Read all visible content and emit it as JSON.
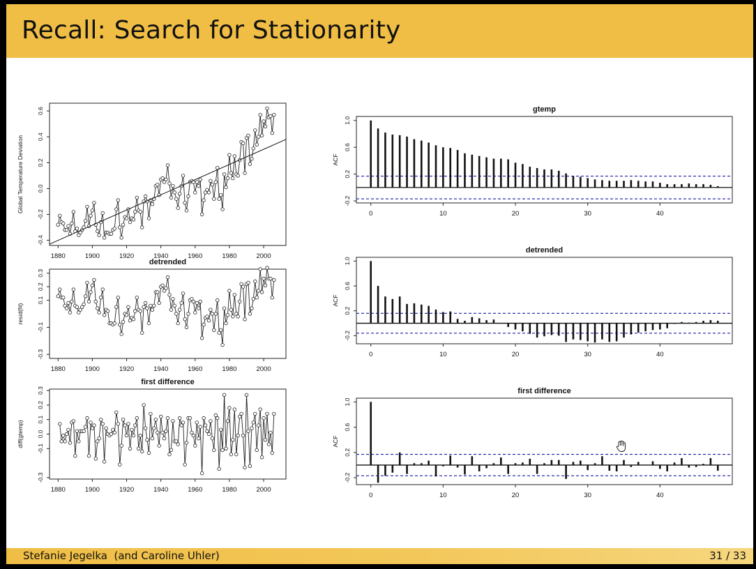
{
  "slide": {
    "title": "Recall: Search for Stationarity",
    "author": "Stefanie Jegelka  (and Caroline Uhler)",
    "page_number": "31",
    "page_separator": "/",
    "page_total": "33"
  },
  "chart_data": [
    {
      "type": "line",
      "title": "",
      "xlabel": "",
      "ylabel": "Global Temperature Deviation",
      "xlim": [
        1875,
        2013
      ],
      "ylim": [
        -0.44,
        0.66
      ],
      "xticks": [
        "1880",
        "1900",
        "1920",
        "1940",
        "1960",
        "1980",
        "2000"
      ],
      "yticks": [
        "-0.4",
        "-0.2",
        "0.0",
        "0.2",
        "0.4",
        "0.6"
      ],
      "markers": "open-circles",
      "trend_line": {
        "x": [
          1875,
          2013
        ],
        "y": [
          -0.43,
          0.38
        ]
      },
      "series": [
        {
          "x_start": 1880,
          "values": [
            -0.28,
            -0.21,
            -0.26,
            -0.27,
            -0.32,
            -0.32,
            -0.29,
            -0.35,
            -0.27,
            -0.18,
            -0.33,
            -0.31,
            -0.36,
            -0.34,
            -0.32,
            -0.3,
            -0.25,
            -0.14,
            -0.29,
            -0.21,
            -0.17,
            -0.11,
            -0.28,
            -0.33,
            -0.36,
            -0.26,
            -0.19,
            -0.38,
            -0.34,
            -0.34,
            -0.35,
            -0.35,
            -0.32,
            -0.31,
            -0.16,
            -0.09,
            -0.3,
            -0.38,
            -0.28,
            -0.22,
            -0.23,
            -0.16,
            -0.26,
            -0.23,
            -0.24,
            -0.18,
            -0.07,
            -0.17,
            -0.18,
            -0.3,
            -0.1,
            -0.06,
            -0.1,
            -0.23,
            -0.09,
            -0.12,
            -0.08,
            0.02,
            0.03,
            -0.05,
            0.07,
            0.08,
            0.05,
            0.07,
            0.18,
            0.04,
            -0.07,
            0.02,
            -0.03,
            -0.08,
            -0.15,
            -0.04,
            0.02,
            0.1,
            -0.11,
            -0.17,
            -0.06,
            0.05,
            0.06,
            0.05,
            -0.03,
            0.05,
            0.02,
            0.07,
            -0.2,
            -0.09,
            -0.03,
            -0.01,
            -0.03,
            0.06,
            0.03,
            -0.08,
            0.05,
            0.16,
            -0.08,
            -0.05,
            -0.16,
            0.11,
            0.01,
            0.08,
            0.26,
            0.12,
            0.08,
            0.25,
            0.11,
            0.1,
            0.22,
            0.36,
            0.35,
            0.12,
            0.39,
            0.41,
            0.19,
            0.23,
            0.31,
            0.45,
            0.34,
            0.4,
            0.57,
            0.41,
            0.52,
            0.48,
            0.62,
            0.55,
            0.56,
            0.43,
            0.57
          ]
        }
      ]
    },
    {
      "type": "line",
      "title": "detrended",
      "xlabel": "",
      "ylabel": "resid(fit)",
      "xlim": [
        1875,
        2013
      ],
      "ylim": [
        -0.33,
        0.33
      ],
      "xticks": [
        "1880",
        "1900",
        "1920",
        "1940",
        "1960",
        "1980",
        "2000"
      ],
      "yticks": [
        "-0.3",
        "-0.1",
        "0.1",
        "0.2",
        "0.3"
      ],
      "markers": "open-circles",
      "series": [
        {
          "x_start": 1880,
          "values": [
            0.13,
            0.18,
            0.12,
            0.12,
            0.06,
            0.04,
            0.08,
            0.01,
            0.09,
            0.18,
            0.06,
            0.05,
            0.01,
            0.03,
            0.05,
            0.07,
            0.13,
            0.23,
            0.09,
            0.16,
            0.21,
            0.25,
            0.09,
            0.04,
            0.01,
            0.12,
            0.18,
            -0.01,
            0.03,
            0.02,
            -0.07,
            -0.07,
            -0.08,
            -0.07,
            0.05,
            0.12,
            -0.08,
            -0.15,
            -0.06,
            0.0,
            -0.01,
            0.05,
            -0.05,
            -0.03,
            -0.04,
            0.02,
            0.12,
            0.03,
            0.02,
            -0.14,
            0.05,
            0.08,
            0.04,
            -0.07,
            0.06,
            0.03,
            0.06,
            0.16,
            0.16,
            0.08,
            0.2,
            0.21,
            0.17,
            0.19,
            0.27,
            0.14,
            0.03,
            0.11,
            0.06,
            0.0,
            -0.07,
            0.03,
            0.08,
            0.15,
            -0.04,
            -0.1,
            0.0,
            0.1,
            0.11,
            0.09,
            0.01,
            0.08,
            0.04,
            0.09,
            -0.18,
            -0.08,
            -0.03,
            -0.02,
            -0.05,
            0.03,
            0.0,
            -0.12,
            0.0,
            0.1,
            -0.14,
            -0.12,
            -0.23,
            0.04,
            -0.07,
            -0.01,
            0.17,
            0.03,
            -0.02,
            0.14,
            0.0,
            -0.02,
            0.09,
            0.22,
            0.2,
            -0.04,
            0.22,
            0.23,
            0.0,
            0.04,
            0.11,
            0.24,
            0.12,
            0.17,
            0.33,
            0.16,
            0.26,
            0.21,
            0.34,
            0.26,
            0.26,
            0.12,
            0.25
          ]
        }
      ]
    },
    {
      "type": "line",
      "title": "first difference",
      "xlabel": "",
      "ylabel": "diff(gtemp)",
      "xlim": [
        1875,
        2013
      ],
      "ylim": [
        -0.31,
        0.31
      ],
      "xticks": [
        "1880",
        "1900",
        "1920",
        "1940",
        "1960",
        "1980",
        "2000"
      ],
      "yticks": [
        "-0.3",
        "-0.1",
        "0.0",
        "0.1",
        "0.2",
        "0.3"
      ],
      "markers": "open-circles",
      "series": [
        {
          "x_start": 1881,
          "values": [
            0.07,
            -0.05,
            -0.01,
            -0.05,
            0.0,
            0.03,
            -0.06,
            0.08,
            0.09,
            -0.15,
            0.02,
            -0.05,
            0.02,
            0.02,
            0.02,
            0.05,
            0.11,
            -0.15,
            0.08,
            0.04,
            0.06,
            -0.17,
            -0.05,
            -0.03,
            0.1,
            0.07,
            -0.19,
            0.04,
            0.0,
            -0.01,
            0.0,
            0.03,
            0.01,
            0.15,
            0.07,
            -0.21,
            -0.08,
            0.1,
            0.06,
            -0.01,
            0.07,
            -0.1,
            0.03,
            -0.01,
            0.06,
            0.11,
            -0.1,
            -0.01,
            -0.12,
            0.2,
            0.04,
            -0.04,
            -0.13,
            0.14,
            -0.03,
            0.04,
            0.1,
            0.01,
            -0.08,
            0.12,
            0.01,
            -0.03,
            0.02,
            0.11,
            -0.14,
            -0.11,
            0.09,
            -0.05,
            -0.05,
            -0.07,
            0.11,
            0.06,
            0.08,
            -0.21,
            -0.06,
            0.11,
            0.11,
            0.01,
            -0.01,
            -0.08,
            0.08,
            -0.03,
            0.05,
            -0.27,
            0.11,
            0.06,
            0.02,
            0.0,
            0.09,
            -0.03,
            -0.11,
            0.13,
            0.11,
            -0.24,
            0.03,
            -0.11,
            0.27,
            -0.1,
            0.09,
            0.18,
            -0.14,
            -0.04,
            0.17,
            -0.14,
            -0.01,
            0.12,
            0.14,
            -0.01,
            -0.23,
            0.27,
            0.02,
            -0.22,
            0.04,
            0.08,
            0.14,
            -0.11,
            0.06,
            0.17,
            -0.16,
            0.11,
            -0.04,
            0.14,
            -0.07,
            0.01,
            -0.13,
            0.14
          ]
        }
      ]
    },
    {
      "type": "bar",
      "title": "gtemp",
      "xlabel": "",
      "ylabel": "ACF",
      "xlim": [
        -2,
        50
      ],
      "ylim": [
        -0.23,
        1.06
      ],
      "xticks": [
        "0",
        "10",
        "20",
        "30",
        "40"
      ],
      "yticks": [
        "-0.2",
        "0.2",
        "0.6",
        "1.0"
      ],
      "confidence_band": 0.17,
      "lag_start": 0,
      "values": [
        1.0,
        0.88,
        0.82,
        0.79,
        0.78,
        0.76,
        0.72,
        0.7,
        0.67,
        0.63,
        0.6,
        0.59,
        0.56,
        0.51,
        0.49,
        0.47,
        0.45,
        0.43,
        0.43,
        0.42,
        0.37,
        0.35,
        0.31,
        0.29,
        0.27,
        0.27,
        0.25,
        0.21,
        0.17,
        0.16,
        0.14,
        0.12,
        0.11,
        0.1,
        0.1,
        0.1,
        0.11,
        0.1,
        0.09,
        0.09,
        0.07,
        0.05,
        0.05,
        0.05,
        0.06,
        0.05,
        0.05,
        0.04,
        0.02
      ]
    },
    {
      "type": "bar",
      "title": "detrended",
      "xlabel": "",
      "ylabel": "ACF",
      "xlim": [
        -2,
        50
      ],
      "ylim": [
        -0.33,
        1.06
      ],
      "xticks": [
        "0",
        "10",
        "20",
        "30",
        "40"
      ],
      "yticks": [
        "-0.2",
        "0.2",
        "0.6",
        "1.0"
      ],
      "confidence_band": 0.16,
      "lag_start": 0,
      "values": [
        1.0,
        0.6,
        0.43,
        0.39,
        0.43,
        0.31,
        0.32,
        0.3,
        0.28,
        0.22,
        0.18,
        0.19,
        0.07,
        0.04,
        0.1,
        0.08,
        0.05,
        0.06,
        0.0,
        -0.06,
        -0.1,
        -0.13,
        -0.17,
        -0.23,
        -0.21,
        -0.19,
        -0.2,
        -0.3,
        -0.26,
        -0.27,
        -0.29,
        -0.31,
        -0.26,
        -0.3,
        -0.29,
        -0.23,
        -0.18,
        -0.15,
        -0.13,
        -0.11,
        -0.1,
        -0.08,
        -0.01,
        0.02,
        0.01,
        0.02,
        0.04,
        0.05,
        0.04
      ]
    },
    {
      "type": "bar",
      "title": "first difference",
      "xlabel": "",
      "ylabel": "ACF",
      "xlim": [
        -2,
        50
      ],
      "ylim": [
        -0.31,
        1.06
      ],
      "xticks": [
        "0",
        "10",
        "20",
        "30",
        "40"
      ],
      "yticks": [
        "-0.2",
        "0.2",
        "0.6",
        "1.0"
      ],
      "confidence_band": 0.17,
      "lag_start": 0,
      "values": [
        1.0,
        -0.28,
        -0.17,
        -0.12,
        0.2,
        -0.14,
        0.03,
        0.03,
        0.07,
        -0.18,
        -0.02,
        0.15,
        -0.04,
        -0.15,
        0.14,
        -0.1,
        -0.05,
        0.03,
        0.12,
        -0.14,
        0.03,
        0.04,
        0.1,
        -0.14,
        0.03,
        0.08,
        0.08,
        -0.22,
        0.05,
        0.07,
        -0.08,
        0.03,
        0.14,
        -0.09,
        -0.1,
        0.08,
        -0.03,
        0.05,
        0.0,
        0.06,
        -0.06,
        -0.1,
        0.04,
        0.11,
        -0.04,
        -0.03,
        0.02,
        0.11,
        -0.09
      ]
    }
  ]
}
